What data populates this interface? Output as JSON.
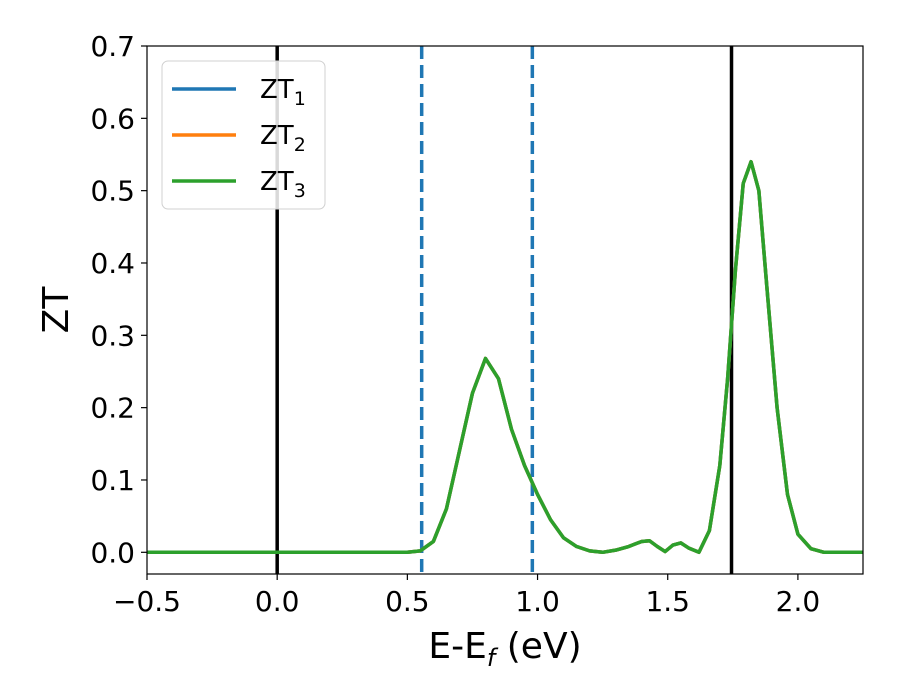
{
  "chart_data": {
    "type": "line",
    "xlabel": "E-E",
    "xlabel_sub": "f",
    "xlabel_unit": " (eV)",
    "ylabel": "ZT",
    "xlim": [
      -0.5,
      2.25
    ],
    "ylim": [
      -0.03,
      0.7
    ],
    "x_ticks": [
      -0.5,
      0.0,
      0.5,
      1.0,
      1.5,
      2.0
    ],
    "x_tick_labels": [
      "−0.5",
      "0.0",
      "0.5",
      "1.0",
      "1.5",
      "2.0"
    ],
    "y_ticks": [
      0.0,
      0.1,
      0.2,
      0.3,
      0.4,
      0.5,
      0.6,
      0.7
    ],
    "y_tick_labels": [
      "0.0",
      "0.1",
      "0.2",
      "0.3",
      "0.4",
      "0.5",
      "0.6",
      "0.7"
    ],
    "grid": false,
    "legend_position": "top-left",
    "series": [
      {
        "name": "ZT",
        "name_sub": "1",
        "color": "#1f77b4",
        "x": [
          -0.5,
          0.0,
          0.5,
          0.55,
          0.6,
          0.65,
          0.7,
          0.75,
          0.8,
          0.85,
          0.9,
          0.95,
          1.0,
          1.05,
          1.1,
          1.15,
          1.2,
          1.25,
          1.3,
          1.35,
          1.4,
          1.43,
          1.46,
          1.49,
          1.52,
          1.55,
          1.58,
          1.62,
          1.66,
          1.7,
          1.73,
          1.76,
          1.79,
          1.82,
          1.85,
          1.88,
          1.92,
          1.96,
          2.0,
          2.05,
          2.1,
          2.25
        ],
        "y": [
          0.0,
          0.0,
          0.0,
          0.002,
          0.015,
          0.06,
          0.14,
          0.22,
          0.268,
          0.24,
          0.17,
          0.12,
          0.08,
          0.045,
          0.02,
          0.008,
          0.002,
          0.0,
          0.003,
          0.008,
          0.015,
          0.016,
          0.008,
          0.001,
          0.01,
          0.013,
          0.006,
          0.0,
          0.03,
          0.12,
          0.24,
          0.39,
          0.51,
          0.54,
          0.5,
          0.37,
          0.2,
          0.08,
          0.025,
          0.005,
          0.0,
          0.0
        ]
      },
      {
        "name": "ZT",
        "name_sub": "2",
        "color": "#ff7f0e",
        "x": [
          -0.5,
          0.0,
          0.5,
          0.55,
          0.6,
          0.65,
          0.7,
          0.75,
          0.8,
          0.85,
          0.9,
          0.95,
          1.0,
          1.05,
          1.1,
          1.15,
          1.2,
          1.25,
          1.3,
          1.35,
          1.4,
          1.43,
          1.46,
          1.49,
          1.52,
          1.55,
          1.58,
          1.62,
          1.66,
          1.7,
          1.73,
          1.76,
          1.79,
          1.82,
          1.85,
          1.88,
          1.92,
          1.96,
          2.0,
          2.05,
          2.1,
          2.25
        ],
        "y": [
          0.0,
          0.0,
          0.0,
          0.002,
          0.015,
          0.06,
          0.14,
          0.22,
          0.268,
          0.24,
          0.17,
          0.12,
          0.08,
          0.045,
          0.02,
          0.008,
          0.002,
          0.0,
          0.003,
          0.008,
          0.015,
          0.016,
          0.008,
          0.001,
          0.01,
          0.013,
          0.006,
          0.0,
          0.03,
          0.12,
          0.24,
          0.39,
          0.51,
          0.54,
          0.5,
          0.37,
          0.2,
          0.08,
          0.025,
          0.005,
          0.0,
          0.0
        ]
      },
      {
        "name": "ZT",
        "name_sub": "3",
        "color": "#2ca02c",
        "x": [
          -0.5,
          0.0,
          0.5,
          0.55,
          0.6,
          0.65,
          0.7,
          0.75,
          0.8,
          0.85,
          0.9,
          0.95,
          1.0,
          1.05,
          1.1,
          1.15,
          1.2,
          1.25,
          1.3,
          1.35,
          1.4,
          1.43,
          1.46,
          1.49,
          1.52,
          1.55,
          1.58,
          1.62,
          1.66,
          1.7,
          1.73,
          1.76,
          1.79,
          1.82,
          1.85,
          1.88,
          1.92,
          1.96,
          2.0,
          2.05,
          2.1,
          2.25
        ],
        "y": [
          0.0,
          0.0,
          0.0,
          0.002,
          0.015,
          0.06,
          0.14,
          0.22,
          0.268,
          0.24,
          0.17,
          0.12,
          0.08,
          0.045,
          0.02,
          0.008,
          0.002,
          0.0,
          0.003,
          0.008,
          0.015,
          0.016,
          0.008,
          0.001,
          0.01,
          0.013,
          0.006,
          0.0,
          0.03,
          0.12,
          0.24,
          0.39,
          0.51,
          0.54,
          0.5,
          0.37,
          0.2,
          0.08,
          0.025,
          0.005,
          0.0,
          0.0
        ]
      }
    ],
    "reference_lines": [
      {
        "x": 0.0,
        "style": "solid",
        "color": "#000000"
      },
      {
        "x": 1.745,
        "style": "solid",
        "color": "#000000"
      },
      {
        "x": 0.555,
        "style": "dashed",
        "color": "#1f77b4"
      },
      {
        "x": 0.98,
        "style": "dashed",
        "color": "#1f77b4"
      }
    ]
  }
}
